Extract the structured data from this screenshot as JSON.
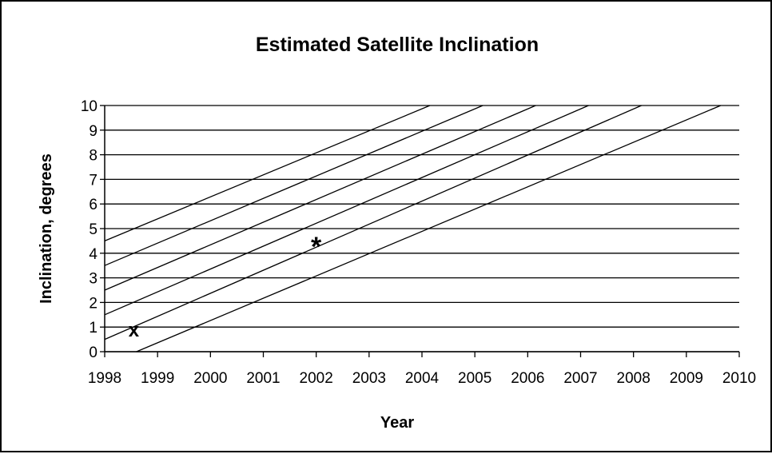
{
  "chart_data": {
    "type": "line",
    "title": "Estimated Satellite Inclination",
    "xlabel": "Year",
    "ylabel": "Inclination, degrees",
    "xlim": [
      1998,
      2010
    ],
    "ylim": [
      0,
      10
    ],
    "xticks": [
      "1998",
      "1999",
      "2000",
      "2001",
      "2002",
      "2003",
      "2004",
      "2005",
      "2006",
      "2007",
      "2008",
      "2009",
      "2010"
    ],
    "yticks": [
      "0",
      "1",
      "2",
      "3",
      "4",
      "5",
      "6",
      "7",
      "8",
      "9",
      "10"
    ],
    "grid": "horizontal",
    "legend": "none",
    "series": [
      {
        "x": [
          1998.0,
          2004.15
        ],
        "y": [
          4.5,
          10
        ]
      },
      {
        "x": [
          1998.0,
          2005.15
        ],
        "y": [
          3.5,
          10
        ]
      },
      {
        "x": [
          1998.0,
          2006.15
        ],
        "y": [
          2.5,
          10
        ]
      },
      {
        "x": [
          1998.0,
          2007.15
        ],
        "y": [
          1.5,
          10
        ]
      },
      {
        "x": [
          1998.0,
          2008.15
        ],
        "y": [
          0.5,
          10
        ]
      },
      {
        "x": [
          1998.6,
          2009.65
        ],
        "y": [
          0,
          10
        ]
      }
    ],
    "markers": [
      {
        "symbol": "x",
        "x": 1998.55,
        "y": 0.85
      },
      {
        "symbol": "*",
        "x": 2002.0,
        "y": 4.35
      }
    ]
  }
}
